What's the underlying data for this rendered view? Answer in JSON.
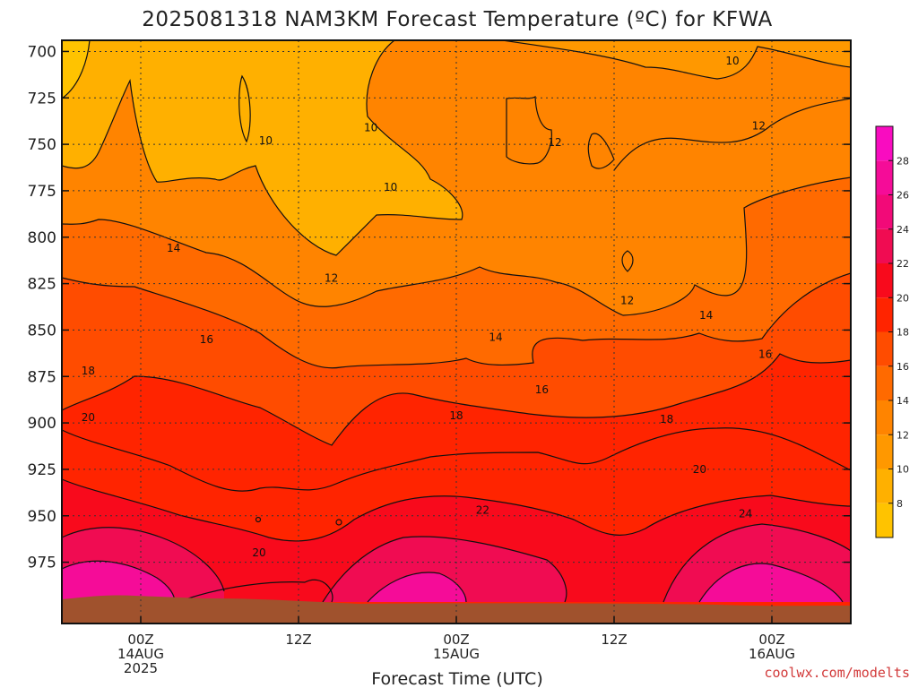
{
  "chart_data": {
    "type": "heatmap",
    "title": "2025081318 NAM3KM Forecast Temperature (ºC) for KFWA",
    "xlabel": "Forecast Time (UTC)",
    "ylabel": "",
    "y_axis": {
      "unit": "hPa",
      "ticks": [
        700,
        725,
        750,
        775,
        800,
        825,
        850,
        875,
        900,
        925,
        950,
        975
      ],
      "range": [
        694,
        1008
      ],
      "inverted": true
    },
    "x_axis": {
      "ticks": [
        {
          "hour": 6,
          "lines": [
            "00Z",
            "14AUG",
            "2025"
          ]
        },
        {
          "hour": 18,
          "lines": [
            "12Z"
          ]
        },
        {
          "hour": 30,
          "lines": [
            "00Z",
            "15AUG"
          ]
        },
        {
          "hour": 42,
          "lines": [
            "12Z"
          ]
        },
        {
          "hour": 54,
          "lines": [
            "00Z",
            "16AUG"
          ]
        }
      ],
      "range": [
        0,
        60
      ]
    },
    "colorbar": {
      "ticks": [
        8,
        10,
        12,
        14,
        16,
        18,
        20,
        22,
        24,
        26,
        28
      ],
      "range": [
        6,
        30
      ],
      "bands": [
        {
          "min": 6,
          "max": 8,
          "color": "#ffc300"
        },
        {
          "min": 8,
          "max": 10,
          "color": "#ffb000"
        },
        {
          "min": 10,
          "max": 12,
          "color": "#ff9800"
        },
        {
          "min": 12,
          "max": 14,
          "color": "#ff8400"
        },
        {
          "min": 14,
          "max": 16,
          "color": "#ff6a00"
        },
        {
          "min": 16,
          "max": 18,
          "color": "#ff4c00"
        },
        {
          "min": 18,
          "max": 20,
          "color": "#ff2400"
        },
        {
          "min": 20,
          "max": 22,
          "color": "#f80a1c"
        },
        {
          "min": 22,
          "max": 24,
          "color": "#f00c52"
        },
        {
          "min": 24,
          "max": 26,
          "color": "#f20a78"
        },
        {
          "min": 26,
          "max": 28,
          "color": "#f50c98"
        },
        {
          "min": 28,
          "max": 30,
          "color": "#f90cc0"
        }
      ]
    },
    "contour_labels": [
      {
        "text": "10",
        "hour": 15.5,
        "p": 748
      },
      {
        "text": "10",
        "hour": 23.5,
        "p": 741
      },
      {
        "text": "10",
        "hour": 25,
        "p": 773
      },
      {
        "text": "10",
        "hour": 51,
        "p": 705
      },
      {
        "text": "12",
        "hour": 37.5,
        "p": 749
      },
      {
        "text": "12",
        "hour": 53,
        "p": 740
      },
      {
        "text": "12",
        "hour": 20.5,
        "p": 822
      },
      {
        "text": "12",
        "hour": 43,
        "p": 834
      },
      {
        "text": "14",
        "hour": 8.5,
        "p": 806
      },
      {
        "text": "14",
        "hour": 33,
        "p": 854
      },
      {
        "text": "14",
        "hour": 49,
        "p": 842
      },
      {
        "text": "16",
        "hour": 11,
        "p": 855
      },
      {
        "text": "16",
        "hour": 36.5,
        "p": 882
      },
      {
        "text": "16",
        "hour": 53.5,
        "p": 863
      },
      {
        "text": "18",
        "hour": 2,
        "p": 872
      },
      {
        "text": "18",
        "hour": 30,
        "p": 896
      },
      {
        "text": "18",
        "hour": 46,
        "p": 898
      },
      {
        "text": "20",
        "hour": 2,
        "p": 897
      },
      {
        "text": "20",
        "hour": 48.5,
        "p": 925
      },
      {
        "text": "20",
        "hour": 15,
        "p": 970
      },
      {
        "text": "22",
        "hour": 32,
        "p": 947
      },
      {
        "text": "24",
        "hour": 52,
        "p": 949
      }
    ],
    "grid": true,
    "terrain_color": "#a0522d"
  },
  "credit": "coolwx.com/modelts"
}
